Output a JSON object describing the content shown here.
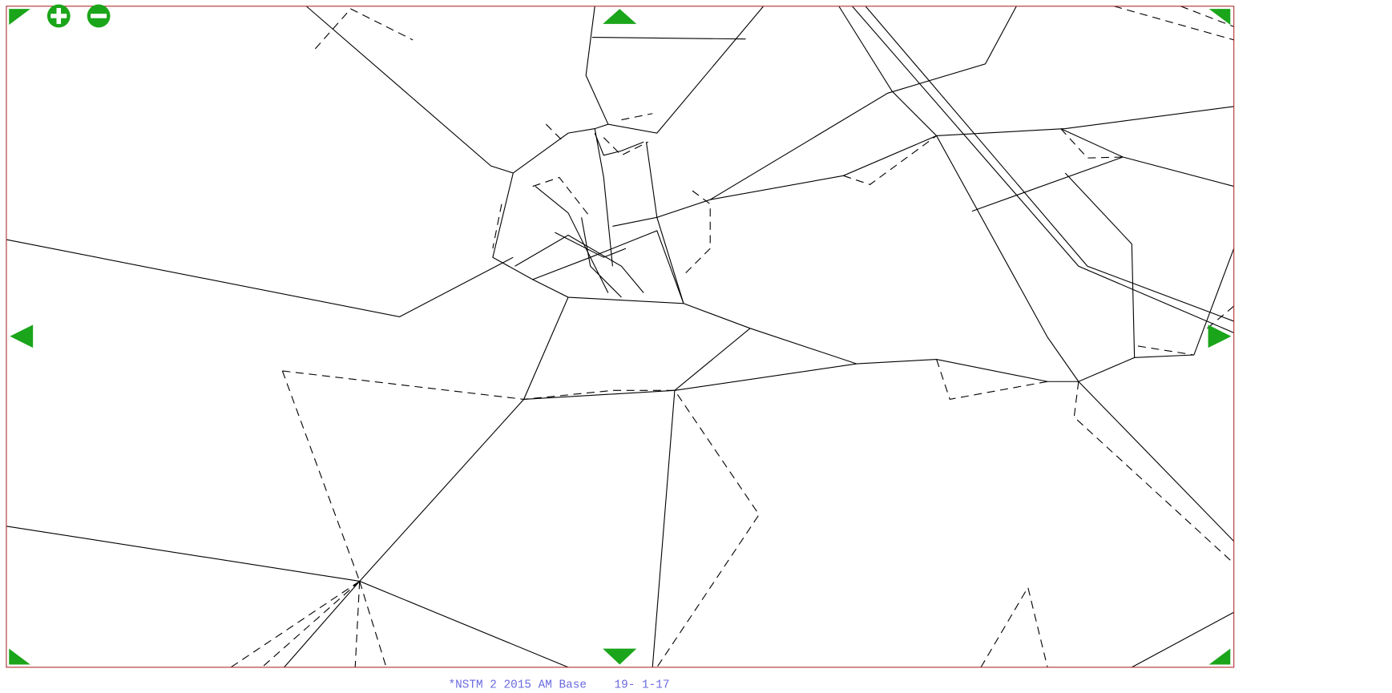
{
  "footer": {
    "text": "*NSTM 2 2015 AM Base    19- 1-17"
  }
}
